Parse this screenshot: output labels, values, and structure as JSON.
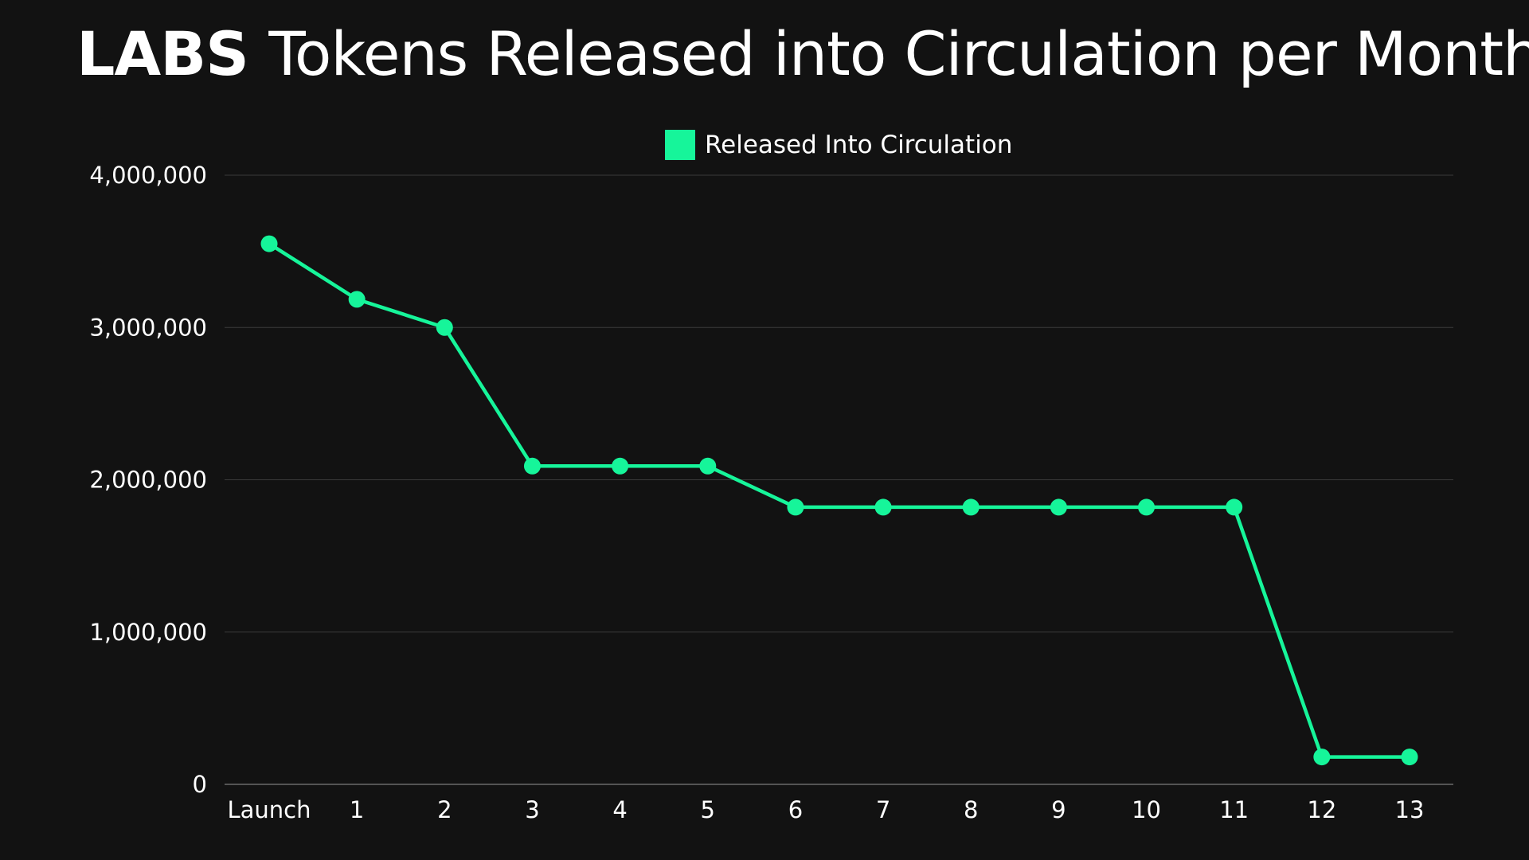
{
  "header": {
    "title_bold": "LABS",
    "title_rest": "Tokens Released into Circulation per Month"
  },
  "colors": {
    "background": "#121212",
    "series": "#16f59a",
    "gridline": "#3a3a3a",
    "axis": "#6a6a6a",
    "text": "#ffffff"
  },
  "chart_data": {
    "type": "line",
    "title": "LABS Tokens Released into Circulation per Month",
    "xlabel": "",
    "ylabel": "",
    "categories": [
      "Launch",
      "1",
      "2",
      "3",
      "4",
      "5",
      "6",
      "7",
      "8",
      "9",
      "10",
      "11",
      "12",
      "13"
    ],
    "series": [
      {
        "name": "Released Into Circulation",
        "values": [
          3550000,
          3185000,
          3000000,
          2090000,
          2090000,
          2090000,
          1820000,
          1820000,
          1820000,
          1820000,
          1820000,
          1820000,
          180000,
          180000
        ]
      }
    ],
    "ylim": [
      0,
      4000000
    ],
    "yticks": [
      0,
      1000000,
      2000000,
      3000000,
      4000000
    ],
    "ytick_labels": [
      "0",
      "1,000,000",
      "2,000,000",
      "3,000,000",
      "4,000,000"
    ],
    "grid": "horizontal",
    "legend_position": "top-center",
    "markers": true
  }
}
